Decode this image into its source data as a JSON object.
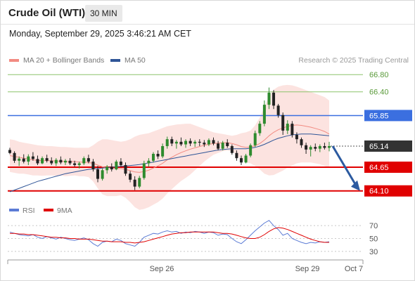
{
  "header": {
    "instrument": "Crude Oil (WTI)",
    "interval": "30 MIN",
    "timestamp": "Monday, September 29, 2025 3:46:21 AM CET"
  },
  "legend": [
    {
      "label": "MA 20 + Bollinger Bands",
      "color": "#f28b82"
    },
    {
      "label": "MA 50",
      "color": "#2f5597"
    }
  ],
  "credit": "Research © 2025 Trading Central",
  "rsi_legend": [
    {
      "label": "RSI",
      "color": "#5b7bd5"
    },
    {
      "label": "9MA",
      "color": "#e00000"
    }
  ],
  "chart_data": {
    "type": "candlestick",
    "price_axis": {
      "min": 63.9,
      "max": 66.95
    },
    "levels": [
      {
        "label": "66.80",
        "value": 66.8,
        "color": "#8cc36a",
        "style": "thin"
      },
      {
        "label": "66.40",
        "value": 66.4,
        "color": "#8cc36a",
        "style": "thin"
      },
      {
        "label": "65.85",
        "value": 65.85,
        "color": "#3b6fe0",
        "style": "badge"
      },
      {
        "label": "65.14",
        "value": 65.14,
        "color": "#333333",
        "style": "current"
      },
      {
        "label": "64.65",
        "value": 64.65,
        "color": "#e00000",
        "style": "badge"
      },
      {
        "label": "64.10",
        "value": 64.1,
        "color": "#e00000",
        "style": "badge"
      }
    ],
    "x_ticks": [
      "Sep 26",
      "Sep 29",
      "Oct 7"
    ],
    "candles": [
      [
        65.05,
        65.1,
        64.95,
        64.98
      ],
      [
        64.98,
        65.02,
        64.75,
        64.8
      ],
      [
        64.8,
        64.9,
        64.68,
        64.85
      ],
      [
        64.85,
        64.95,
        64.74,
        64.78
      ],
      [
        64.78,
        64.95,
        64.7,
        64.9
      ],
      [
        64.9,
        65.0,
        64.8,
        64.84
      ],
      [
        64.84,
        64.92,
        64.7,
        64.74
      ],
      [
        64.74,
        64.9,
        64.72,
        64.86
      ],
      [
        64.86,
        64.94,
        64.76,
        64.8
      ],
      [
        64.8,
        64.88,
        64.7,
        64.74
      ],
      [
        64.74,
        64.86,
        64.68,
        64.82
      ],
      [
        64.82,
        64.9,
        64.72,
        64.76
      ],
      [
        64.76,
        64.84,
        64.7,
        64.8
      ],
      [
        64.8,
        64.86,
        64.7,
        64.74
      ],
      [
        64.74,
        64.8,
        64.66,
        64.7
      ],
      [
        64.7,
        64.78,
        64.62,
        64.74
      ],
      [
        64.74,
        64.9,
        64.7,
        64.86
      ],
      [
        64.86,
        64.94,
        64.74,
        64.78
      ],
      [
        64.78,
        64.84,
        64.55,
        64.6
      ],
      [
        64.6,
        64.68,
        64.3,
        64.38
      ],
      [
        64.38,
        64.62,
        64.34,
        64.58
      ],
      [
        64.58,
        64.7,
        64.5,
        64.66
      ],
      [
        64.66,
        64.74,
        64.55,
        64.6
      ],
      [
        64.6,
        64.82,
        64.58,
        64.78
      ],
      [
        64.78,
        64.86,
        64.66,
        64.7
      ],
      [
        64.7,
        64.76,
        64.45,
        64.5
      ],
      [
        64.5,
        64.56,
        64.3,
        64.36
      ],
      [
        64.36,
        64.44,
        64.12,
        64.2
      ],
      [
        64.2,
        64.45,
        64.16,
        64.4
      ],
      [
        64.4,
        64.8,
        64.36,
        64.74
      ],
      [
        64.74,
        64.86,
        64.66,
        64.8
      ],
      [
        64.8,
        65.0,
        64.76,
        64.96
      ],
      [
        64.96,
        65.04,
        64.84,
        64.9
      ],
      [
        64.9,
        65.2,
        64.86,
        65.14
      ],
      [
        65.14,
        65.36,
        65.08,
        65.3
      ],
      [
        65.3,
        65.36,
        65.14,
        65.2
      ],
      [
        65.2,
        65.28,
        65.08,
        65.24
      ],
      [
        65.24,
        65.34,
        65.14,
        65.18
      ],
      [
        65.18,
        65.3,
        65.1,
        65.26
      ],
      [
        65.26,
        65.32,
        65.14,
        65.2
      ],
      [
        65.2,
        65.28,
        65.12,
        65.24
      ],
      [
        65.24,
        65.3,
        65.14,
        65.22
      ],
      [
        65.22,
        65.28,
        65.12,
        65.18
      ],
      [
        65.18,
        65.32,
        65.14,
        65.28
      ],
      [
        65.28,
        65.34,
        65.16,
        65.2
      ],
      [
        65.2,
        65.26,
        65.04,
        65.08
      ],
      [
        65.08,
        65.26,
        65.04,
        65.22
      ],
      [
        65.22,
        65.3,
        65.1,
        65.14
      ],
      [
        65.14,
        65.18,
        64.94,
        64.98
      ],
      [
        64.98,
        65.04,
        64.8,
        64.86
      ],
      [
        64.86,
        64.92,
        64.7,
        64.76
      ],
      [
        64.76,
        64.96,
        64.74,
        64.92
      ],
      [
        64.92,
        65.2,
        64.88,
        65.16
      ],
      [
        65.16,
        65.5,
        65.12,
        65.44
      ],
      [
        65.44,
        65.72,
        65.38,
        65.66
      ],
      [
        65.66,
        66.2,
        65.6,
        66.1
      ],
      [
        66.1,
        66.5,
        66.0,
        66.38
      ],
      [
        66.38,
        66.44,
        66.0,
        66.08
      ],
      [
        66.08,
        66.12,
        65.8,
        65.86
      ],
      [
        65.86,
        65.92,
        65.4,
        65.5
      ],
      [
        65.5,
        65.74,
        65.42,
        65.66
      ],
      [
        65.66,
        65.72,
        65.34,
        65.4
      ],
      [
        65.4,
        65.46,
        65.2,
        65.3
      ],
      [
        65.3,
        65.34,
        65.1,
        65.16
      ],
      [
        65.16,
        65.22,
        64.96,
        65.06
      ],
      [
        65.06,
        65.16,
        64.9,
        65.12
      ],
      [
        65.12,
        65.2,
        65.02,
        65.08
      ],
      [
        65.08,
        65.18,
        65.0,
        65.14
      ],
      [
        65.14,
        65.22,
        65.06,
        65.1
      ],
      [
        65.1,
        65.24,
        65.02,
        65.14
      ]
    ],
    "rsi_axis": {
      "min": 20,
      "max": 80,
      "ticks": [
        70,
        50,
        30
      ]
    },
    "rsi": [
      60,
      58,
      56,
      55,
      54,
      56,
      52,
      50,
      53,
      51,
      49,
      52,
      50,
      48,
      47,
      49,
      51,
      48,
      42,
      38,
      44,
      46,
      45,
      49,
      47,
      42,
      40,
      38,
      44,
      52,
      55,
      58,
      57,
      60,
      62,
      60,
      61,
      58,
      60,
      59,
      61,
      60,
      58,
      60,
      59,
      55,
      57,
      56,
      50,
      45,
      42,
      48,
      55,
      62,
      68,
      74,
      78,
      70,
      64,
      55,
      58,
      50,
      47,
      44,
      42,
      44,
      43,
      45,
      44,
      45
    ],
    "rsi_ma": [
      58,
      58,
      57,
      57,
      56,
      56,
      55,
      54,
      53,
      52,
      52,
      51,
      51,
      50,
      50,
      49,
      49,
      49,
      48,
      47,
      46,
      46,
      45,
      45,
      45,
      44,
      44,
      43,
      44,
      45,
      47,
      49,
      51,
      53,
      55,
      57,
      58,
      59,
      59,
      60,
      60,
      60,
      60,
      60,
      60,
      59,
      58,
      58,
      57,
      55,
      53,
      51,
      50,
      50,
      52,
      56,
      61,
      65,
      67,
      66,
      64,
      61,
      58,
      55,
      52,
      49,
      47,
      45,
      44,
      44
    ],
    "ma20": [
      64.92,
      64.9,
      64.88,
      64.86,
      64.84,
      64.82,
      64.81,
      64.8,
      64.8,
      64.8,
      64.79,
      64.79,
      64.78,
      64.78,
      64.78,
      64.77,
      64.77,
      64.76,
      64.74,
      64.7,
      64.66,
      64.64,
      64.63,
      64.62,
      64.62,
      64.6,
      64.57,
      64.54,
      64.53,
      64.55,
      64.58,
      64.63,
      64.68,
      64.74,
      64.82,
      64.88,
      64.94,
      64.99,
      65.03,
      65.07,
      65.1,
      65.13,
      65.16,
      65.18,
      65.2,
      65.21,
      65.22,
      65.22,
      65.2,
      65.17,
      65.13,
      65.11,
      65.12,
      65.15,
      65.2,
      65.28,
      65.38,
      65.46,
      65.52,
      65.56,
      65.6,
      65.62,
      65.63,
      65.62,
      65.6,
      65.58,
      65.55,
      65.52,
      65.48,
      65.42
    ],
    "ma50": [
      64.08,
      64.12,
      64.16,
      64.2,
      64.24,
      64.28,
      64.32,
      64.35,
      64.38,
      64.41,
      64.44,
      64.47,
      64.5,
      64.52,
      64.54,
      64.56,
      64.58,
      64.6,
      64.61,
      64.62,
      64.63,
      64.64,
      64.65,
      64.66,
      64.67,
      64.68,
      64.69,
      64.7,
      64.71,
      64.73,
      64.75,
      64.77,
      64.79,
      64.81,
      64.83,
      64.85,
      64.87,
      64.89,
      64.91,
      64.93,
      64.95,
      64.97,
      64.99,
      65.01,
      65.03,
      65.05,
      65.06,
      65.07,
      65.08,
      65.08,
      65.08,
      65.08,
      65.09,
      65.11,
      65.14,
      65.18,
      65.23,
      65.28,
      65.32,
      65.35,
      65.38,
      65.4,
      65.41,
      65.42,
      65.42,
      65.42,
      65.41,
      65.4,
      65.39,
      65.38
    ],
    "bb_upper": [
      65.3,
      65.28,
      65.24,
      65.22,
      65.2,
      65.18,
      65.16,
      65.15,
      65.14,
      65.14,
      65.13,
      65.12,
      65.12,
      65.11,
      65.1,
      65.1,
      65.1,
      65.1,
      65.16,
      65.24,
      65.3,
      65.3,
      65.28,
      65.26,
      65.24,
      65.26,
      65.3,
      65.36,
      65.4,
      65.42,
      65.44,
      65.48,
      65.52,
      65.56,
      65.6,
      65.62,
      65.64,
      65.65,
      65.66,
      65.66,
      65.62,
      65.58,
      65.54,
      65.5,
      65.46,
      65.44,
      65.42,
      65.4,
      65.38,
      65.4,
      65.44,
      65.46,
      65.5,
      65.62,
      65.8,
      66.05,
      66.3,
      66.45,
      66.52,
      66.55,
      66.56,
      66.55,
      66.52,
      66.48,
      66.44,
      66.4,
      66.36,
      66.32,
      66.28,
      66.2
    ],
    "bb_lower": [
      64.54,
      64.52,
      64.5,
      64.5,
      64.48,
      64.46,
      64.46,
      64.45,
      64.46,
      64.46,
      64.45,
      64.46,
      64.44,
      64.45,
      64.46,
      64.44,
      64.44,
      64.42,
      64.32,
      64.16,
      64.02,
      63.98,
      63.98,
      63.98,
      64.0,
      63.94,
      63.84,
      63.72,
      63.66,
      63.68,
      63.72,
      63.78,
      63.84,
      63.92,
      64.04,
      64.14,
      64.24,
      64.33,
      64.4,
      64.48,
      64.58,
      64.68,
      64.78,
      64.86,
      64.94,
      64.98,
      65.02,
      65.04,
      65.02,
      64.94,
      64.82,
      64.76,
      64.74,
      64.68,
      64.6,
      64.5,
      64.46,
      64.47,
      64.52,
      64.57,
      64.64,
      64.69,
      64.74,
      64.76,
      64.76,
      64.76,
      64.74,
      64.72,
      64.68,
      64.64
    ],
    "projection": {
      "from": 65.14,
      "to": 64.1
    }
  }
}
